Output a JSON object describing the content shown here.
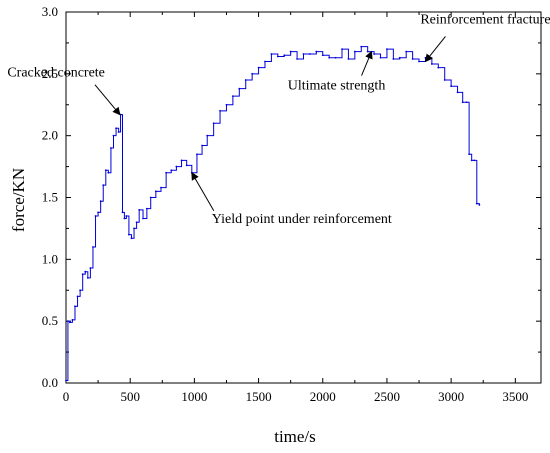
{
  "chart_data": {
    "type": "line",
    "title": "",
    "xlabel": "time/s",
    "ylabel": "force/KN",
    "xlim": [
      0,
      3700
    ],
    "ylim": [
      0,
      3.0
    ],
    "grid": false,
    "x_ticks": [
      "0",
      "500",
      "1000",
      "1500",
      "2000",
      "2500",
      "3000",
      "3500"
    ],
    "y_ticks": [
      "0.0",
      "0.5",
      "1.0",
      "1.5",
      "2.0",
      "2.5",
      "3.0"
    ],
    "line_color": "#0000dd",
    "series": [
      {
        "x": [
          0,
          15,
          30,
          50,
          70,
          90,
          110,
          130,
          150,
          170,
          190,
          210,
          230,
          250,
          270,
          290,
          310,
          330,
          350,
          370,
          390,
          410,
          425,
          440,
          455,
          470,
          490,
          510,
          530,
          550,
          570,
          600,
          630,
          660,
          700,
          740,
          780,
          820,
          860,
          900,
          940,
          980,
          1020,
          1060,
          1100,
          1150,
          1200,
          1250,
          1300,
          1350,
          1400,
          1450,
          1500,
          1550,
          1600,
          1650,
          1700,
          1750,
          1800,
          1850,
          1900,
          1950,
          2000,
          2050,
          2100,
          2150,
          2200,
          2250,
          2300,
          2350,
          2400,
          2450,
          2500,
          2550,
          2600,
          2650,
          2700,
          2750,
          2800,
          2850,
          2900,
          2950,
          3000,
          3050,
          3090,
          3120,
          3140,
          3160,
          3180,
          3200,
          3220
        ],
        "y": [
          0.02,
          0.5,
          0.49,
          0.51,
          0.62,
          0.7,
          0.75,
          0.88,
          0.9,
          0.85,
          0.93,
          1.1,
          1.35,
          1.38,
          1.47,
          1.6,
          1.72,
          1.7,
          1.9,
          2.0,
          2.06,
          2.03,
          2.17,
          1.38,
          1.33,
          1.35,
          1.2,
          1.17,
          1.25,
          1.3,
          1.4,
          1.33,
          1.41,
          1.5,
          1.55,
          1.58,
          1.7,
          1.72,
          1.75,
          1.8,
          1.76,
          1.7,
          1.85,
          1.92,
          2.0,
          2.1,
          2.2,
          2.25,
          2.32,
          2.38,
          2.45,
          2.5,
          2.55,
          2.6,
          2.66,
          2.64,
          2.65,
          2.68,
          2.62,
          2.66,
          2.66,
          2.68,
          2.65,
          2.63,
          2.63,
          2.7,
          2.62,
          2.68,
          2.72,
          2.68,
          2.66,
          2.63,
          2.7,
          2.62,
          2.63,
          2.68,
          2.62,
          2.6,
          2.63,
          2.58,
          2.55,
          2.45,
          2.4,
          2.35,
          2.27,
          2.27,
          1.85,
          1.8,
          1.8,
          1.45,
          1.44
        ]
      }
    ],
    "annotations": [
      {
        "text": "Cracked concrete",
        "x": 420,
        "y": 2.17
      },
      {
        "text": "Yield point under reinforcement",
        "x": 980,
        "y": 1.7
      },
      {
        "text": "Ultimate strength",
        "x": 2380,
        "y": 2.68
      },
      {
        "text": "Reinforcement fracture",
        "x": 2800,
        "y": 2.6
      }
    ]
  }
}
